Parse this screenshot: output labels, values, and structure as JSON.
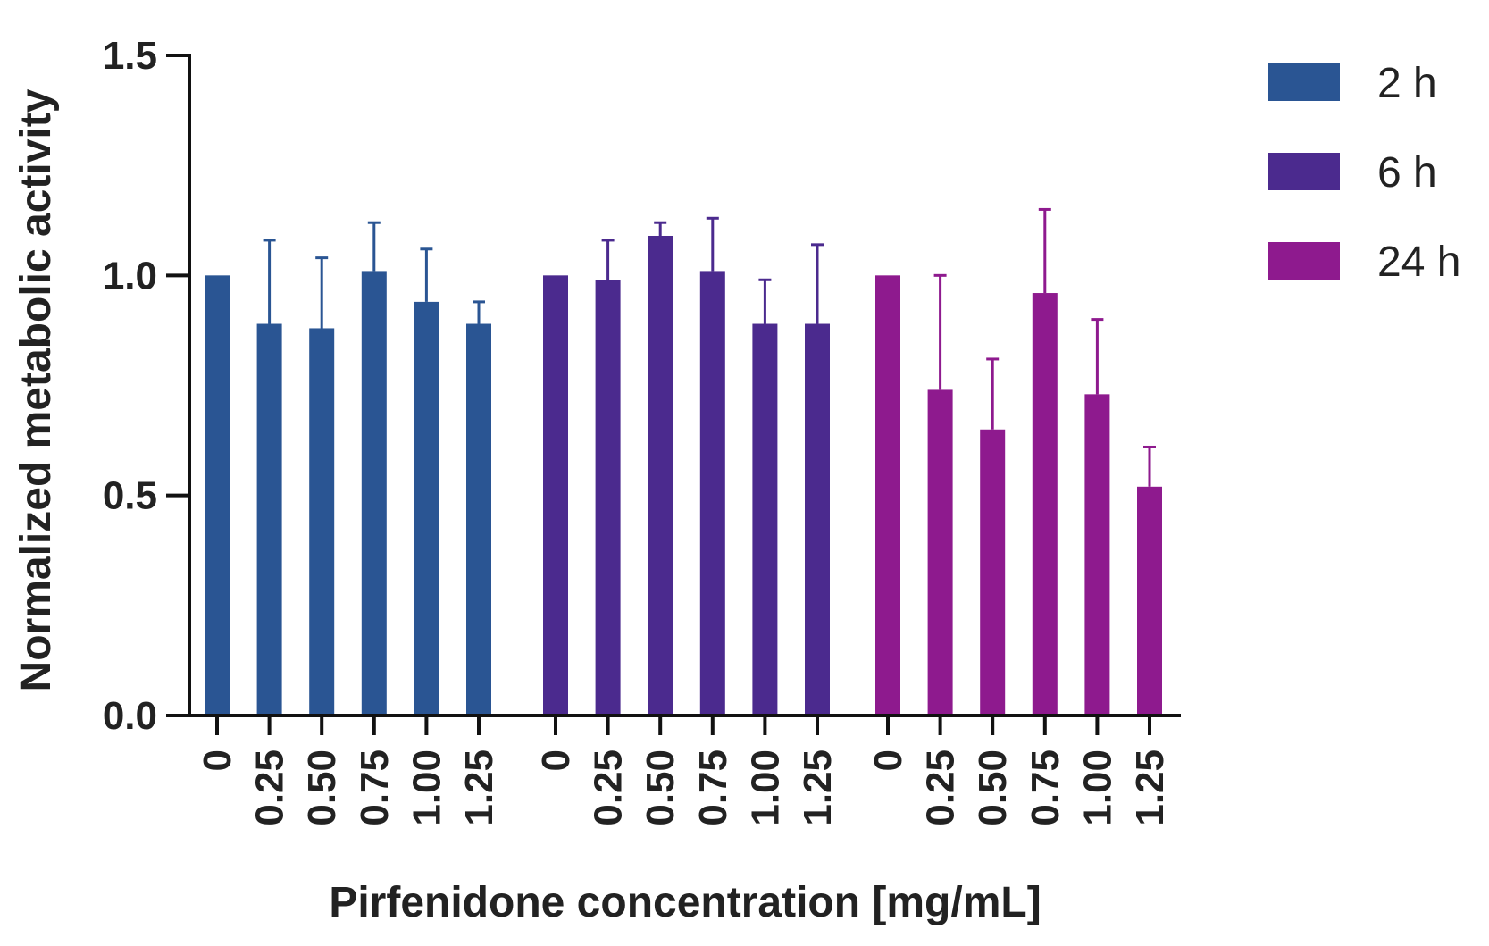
{
  "chart_data": {
    "type": "bar",
    "xlabel": "Pirfenidone concentration [mg/mL]",
    "ylabel": "Normalized metabolic activity",
    "ylim": [
      0,
      1.5
    ],
    "yticks": [
      "0.0",
      "0.5",
      "1.0",
      "1.5"
    ],
    "ytick_values": [
      0,
      0.5,
      1.0,
      1.5
    ],
    "legend_position": "right",
    "series": [
      {
        "name": "2 h",
        "color": "#2a5593",
        "categories": [
          "0",
          "0.25",
          "0.50",
          "0.75",
          "1.00",
          "1.25"
        ],
        "values": [
          1.0,
          0.89,
          0.88,
          1.01,
          0.94,
          0.89
        ],
        "error": [
          0.0,
          0.19,
          0.16,
          0.11,
          0.12,
          0.05
        ]
      },
      {
        "name": "6 h",
        "color": "#4b2a8e",
        "categories": [
          "0",
          "0.25",
          "0.50",
          "0.75",
          "1.00",
          "1.25"
        ],
        "values": [
          1.0,
          0.99,
          1.09,
          1.01,
          0.89,
          0.89
        ],
        "error": [
          0.0,
          0.09,
          0.03,
          0.12,
          0.1,
          0.18
        ]
      },
      {
        "name": "24 h",
        "color": "#8e1a8e",
        "categories": [
          "0",
          "0.25",
          "0.50",
          "0.75",
          "1.00",
          "1.25"
        ],
        "values": [
          1.0,
          0.74,
          0.65,
          0.96,
          0.73,
          0.52
        ],
        "error": [
          0.0,
          0.26,
          0.16,
          0.19,
          0.17,
          0.09
        ]
      }
    ]
  }
}
